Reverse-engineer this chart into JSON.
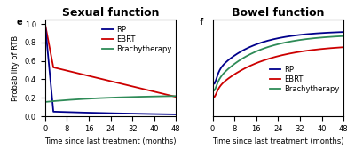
{
  "title_left": "Sexual function",
  "title_right": "Bowel function",
  "label_left": "e",
  "label_right": "f",
  "ylabel": "Probability of RTB",
  "xlabel": "Time since last treatment (months)",
  "xticks": [
    0,
    8,
    16,
    24,
    32,
    40,
    48
  ],
  "yticks_left": [
    0.0,
    0.2,
    0.4,
    0.6,
    0.8,
    1.0
  ],
  "ylim_left": [
    0.0,
    1.05
  ],
  "ylim_right": [
    0.3,
    1.02
  ],
  "colors": {
    "RP": "#00008B",
    "EBRT": "#CC0000",
    "Brachytherapy": "#2e8b57"
  },
  "title_color": "#000000",
  "title_fontsize": 9,
  "legend_fontsize": 6,
  "tick_fontsize": 6,
  "label_fontsize": 7,
  "axis_label_fontsize": 6
}
